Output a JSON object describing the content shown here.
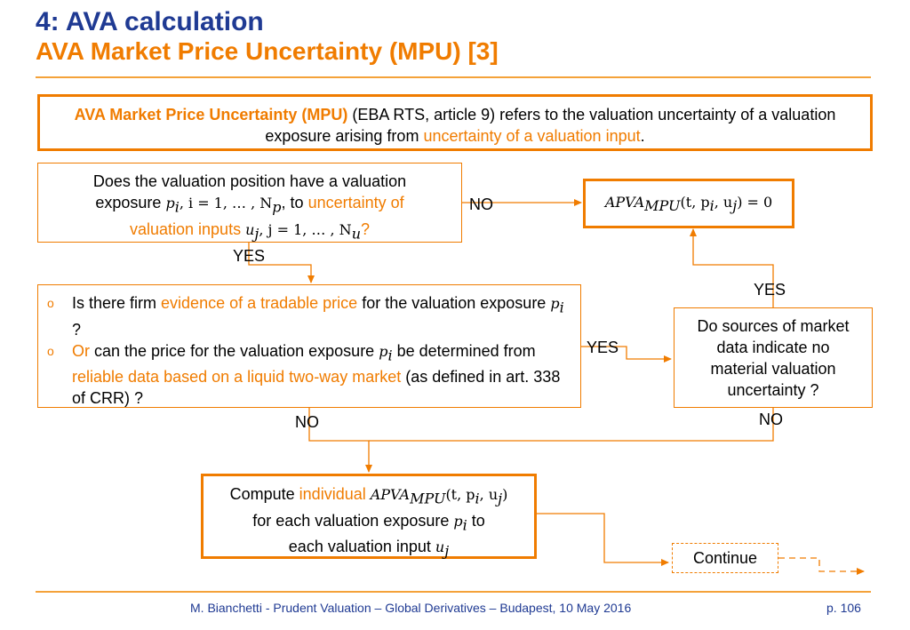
{
  "header": {
    "title": "4: AVA calculation",
    "subtitle": "AVA Market Price Uncertainty (MPU) [3]"
  },
  "definition": {
    "bold_term": "AVA Market Price Uncertainty (MPU)",
    "text_a": " (EBA RTS, article 9) refers to the valuation uncertainty of a valuation exposure arising from ",
    "highlight": "uncertainty of a valuation input",
    "text_b": "."
  },
  "question1": {
    "line1": "Does the valuation position have a valuation",
    "line2_a": "exposure ",
    "p_i": "p",
    "i_sub": "i",
    "range_i": ", i = 1, … , N",
    "range_i_sub": "p",
    "line2_b": ", to ",
    "line2_hl": "uncertainty of",
    "line3_hl": "valuation inputs ",
    "u_j": "u",
    "j_sub": "j",
    "range_j": ", j = 1, … , N",
    "range_j_sub": "u",
    "line3_end": "?"
  },
  "result_zero": {
    "formula": "APVA",
    "sub": "MPU",
    "args": "(t, p",
    "args_sub_i": "i",
    "args_mid": ", u",
    "args_sub_j": "j",
    "args_end": ") = 0"
  },
  "question2": {
    "b1_a": "Is there firm ",
    "b1_hl": "evidence of a tradable price",
    "b1_b": " for the valuation exposure ",
    "b1_end": " ?",
    "b2_hl1": "Or",
    "b2_a": " can the price for the valuation exposure ",
    "b2_b": " be determined from ",
    "b2_hl2": "reliable data based on a liquid two-way market",
    "b2_c": " (as defined in art. 338 of CRR) ?"
  },
  "question3": {
    "text": "Do sources of market data indicate no material valuation uncertainty ?"
  },
  "compute": {
    "word": "Compute ",
    "hl": "individual ",
    "line2": "for each valuation exposure ",
    "line2_end": " to",
    "line3": "each valuation input "
  },
  "continue_label": "Continue",
  "labels": {
    "no1": "NO",
    "yes1": "YES",
    "yes2": "YES",
    "yes3": "YES",
    "no2": "NO",
    "no3": "NO"
  },
  "footer": {
    "text": "M. Bianchetti - Prudent Valuation – Global Derivatives – Budapest, 10 May 2016",
    "page": "p. 106"
  },
  "colors": {
    "orange": "#f07c00",
    "blue": "#1f3a93",
    "rule": "#f4a23a"
  }
}
